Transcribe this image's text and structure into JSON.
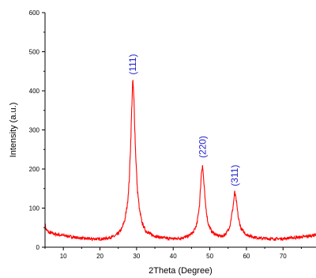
{
  "chart_data": {
    "type": "line",
    "title": "",
    "xlabel": "2Theta (Degree)",
    "ylabel": "Intensity (a.u.)",
    "xlim": [
      5,
      79
    ],
    "ylim": [
      0,
      600
    ],
    "x_ticks": [
      10,
      20,
      30,
      40,
      50,
      60,
      70
    ],
    "y_ticks": [
      0,
      100,
      200,
      300,
      400,
      500,
      600
    ],
    "grid": false,
    "legend": "none",
    "series": [
      {
        "color": "#ff0000",
        "points": [
          [
            5,
            60
          ],
          [
            5.3,
            45
          ],
          [
            6,
            38
          ],
          [
            8,
            33
          ],
          [
            10,
            30
          ],
          [
            12,
            27
          ],
          [
            14,
            24
          ],
          [
            16,
            22
          ],
          [
            18,
            21
          ],
          [
            20,
            21
          ],
          [
            22,
            23
          ],
          [
            24,
            28
          ],
          [
            25,
            35
          ],
          [
            26,
            48
          ],
          [
            26.8,
            70
          ],
          [
            27.5,
            110
          ],
          [
            28,
            170
          ],
          [
            28.4,
            270
          ],
          [
            28.8,
            390
          ],
          [
            29.0,
            425
          ],
          [
            29.3,
            370
          ],
          [
            29.7,
            250
          ],
          [
            30.2,
            150
          ],
          [
            30.8,
            95
          ],
          [
            31.5,
            62
          ],
          [
            32.5,
            42
          ],
          [
            34,
            32
          ],
          [
            36,
            26
          ],
          [
            38,
            23
          ],
          [
            40,
            22
          ],
          [
            42,
            23
          ],
          [
            44,
            28
          ],
          [
            45.5,
            38
          ],
          [
            46.5,
            60
          ],
          [
            47.2,
            110
          ],
          [
            47.7,
            190
          ],
          [
            48.0,
            212
          ],
          [
            48.3,
            175
          ],
          [
            48.8,
            110
          ],
          [
            49.5,
            62
          ],
          [
            50.5,
            40
          ],
          [
            52,
            30
          ],
          [
            53.5,
            28
          ],
          [
            54.5,
            35
          ],
          [
            55.5,
            55
          ],
          [
            56.3,
            100
          ],
          [
            56.8,
            140
          ],
          [
            57.2,
            120
          ],
          [
            57.8,
            75
          ],
          [
            58.5,
            48
          ],
          [
            60,
            32
          ],
          [
            62,
            26
          ],
          [
            64,
            23
          ],
          [
            66,
            22
          ],
          [
            68,
            21
          ],
          [
            70,
            22
          ],
          [
            72,
            24
          ],
          [
            74,
            25
          ],
          [
            76,
            27
          ],
          [
            78,
            30
          ],
          [
            79,
            33
          ]
        ]
      }
    ],
    "annotations": [
      {
        "text": "(111)",
        "x": 29.0,
        "y": 425,
        "color": "#2222cc"
      },
      {
        "text": "(220)",
        "x": 48.0,
        "y": 212,
        "color": "#2222cc"
      },
      {
        "text": "(311)",
        "x": 56.8,
        "y": 140,
        "color": "#2222cc"
      }
    ]
  }
}
